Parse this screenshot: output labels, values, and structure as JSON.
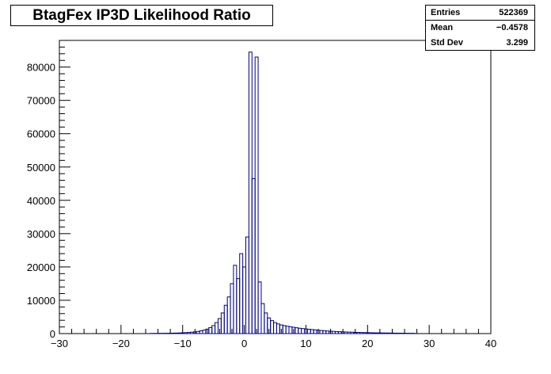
{
  "title": "BtagFex IP3D Likelihood Ratio",
  "stats": [
    {
      "label": "Entries",
      "value": "522369"
    },
    {
      "label": "Mean",
      "value": "−0.4578"
    },
    {
      "label": "Std Dev",
      "value": "3.299"
    }
  ],
  "colors": {
    "line": "#000080",
    "axis": "#000000",
    "background": "#ffffff"
  },
  "chart_data": {
    "type": "bar",
    "title": "BtagFex IP3D Likelihood Ratio",
    "xlabel": "",
    "ylabel": "",
    "xlim": [
      -30,
      40
    ],
    "ylim": [
      0,
      88000
    ],
    "bin_width": 0.5,
    "grid": false,
    "x_ticks": [
      -30,
      -20,
      -10,
      0,
      10,
      20,
      30,
      40
    ],
    "x_tick_labels": [
      "−30",
      "−20",
      "−10",
      "0",
      "10",
      "20",
      "30",
      "40"
    ],
    "y_ticks": [
      0,
      10000,
      20000,
      30000,
      40000,
      50000,
      60000,
      70000,
      80000
    ],
    "y_tick_labels": [
      "0",
      "10000",
      "20000",
      "30000",
      "40000",
      "50000",
      "60000",
      "70000",
      "80000"
    ],
    "bins": [
      {
        "x": -15.0,
        "y": 50
      },
      {
        "x": -14.5,
        "y": 60
      },
      {
        "x": -14.0,
        "y": 70
      },
      {
        "x": -13.5,
        "y": 80
      },
      {
        "x": -13.0,
        "y": 90
      },
      {
        "x": -12.5,
        "y": 100
      },
      {
        "x": -12.0,
        "y": 120
      },
      {
        "x": -11.5,
        "y": 140
      },
      {
        "x": -11.0,
        "y": 160
      },
      {
        "x": -10.5,
        "y": 190
      },
      {
        "x": -10.0,
        "y": 230
      },
      {
        "x": -9.5,
        "y": 280
      },
      {
        "x": -9.0,
        "y": 340
      },
      {
        "x": -8.5,
        "y": 420
      },
      {
        "x": -8.0,
        "y": 520
      },
      {
        "x": -7.5,
        "y": 650
      },
      {
        "x": -7.0,
        "y": 820
      },
      {
        "x": -6.5,
        "y": 1050
      },
      {
        "x": -6.0,
        "y": 1350
      },
      {
        "x": -5.5,
        "y": 1800
      },
      {
        "x": -5.0,
        "y": 2400
      },
      {
        "x": -4.5,
        "y": 3300
      },
      {
        "x": -4.0,
        "y": 4500
      },
      {
        "x": -3.5,
        "y": 6200
      },
      {
        "x": -3.0,
        "y": 8500
      },
      {
        "x": -2.5,
        "y": 11000
      },
      {
        "x": -2.0,
        "y": 15000
      },
      {
        "x": -1.5,
        "y": 20500
      },
      {
        "x": -1.0,
        "y": 16500
      },
      {
        "x": -0.5,
        "y": 24000
      },
      {
        "x": 0.0,
        "y": 20000
      },
      {
        "x": 0.5,
        "y": 29000
      },
      {
        "x": 1.0,
        "y": 84500
      },
      {
        "x": 1.5,
        "y": 46500
      },
      {
        "x": 2.0,
        "y": 83000
      },
      {
        "x": 2.5,
        "y": 15500
      },
      {
        "x": 3.0,
        "y": 9000
      },
      {
        "x": 3.5,
        "y": 6200
      },
      {
        "x": 4.0,
        "y": 4700
      },
      {
        "x": 4.5,
        "y": 3900
      },
      {
        "x": 5.0,
        "y": 3300
      },
      {
        "x": 5.5,
        "y": 2900
      },
      {
        "x": 6.0,
        "y": 2600
      },
      {
        "x": 6.5,
        "y": 2400
      },
      {
        "x": 7.0,
        "y": 2200
      },
      {
        "x": 7.5,
        "y": 2050
      },
      {
        "x": 8.0,
        "y": 1900
      },
      {
        "x": 8.5,
        "y": 1750
      },
      {
        "x": 9.0,
        "y": 1600
      },
      {
        "x": 9.5,
        "y": 1500
      },
      {
        "x": 10.0,
        "y": 1400
      },
      {
        "x": 10.5,
        "y": 1300
      },
      {
        "x": 11.0,
        "y": 1200
      },
      {
        "x": 11.5,
        "y": 1100
      },
      {
        "x": 12.0,
        "y": 1000
      },
      {
        "x": 12.5,
        "y": 920
      },
      {
        "x": 13.0,
        "y": 850
      },
      {
        "x": 13.5,
        "y": 780
      },
      {
        "x": 14.0,
        "y": 720
      },
      {
        "x": 14.5,
        "y": 660
      },
      {
        "x": 15.0,
        "y": 610
      },
      {
        "x": 15.5,
        "y": 560
      },
      {
        "x": 16.0,
        "y": 520
      },
      {
        "x": 16.5,
        "y": 480
      },
      {
        "x": 17.0,
        "y": 440
      },
      {
        "x": 17.5,
        "y": 410
      },
      {
        "x": 18.0,
        "y": 380
      },
      {
        "x": 18.5,
        "y": 350
      },
      {
        "x": 19.0,
        "y": 320
      },
      {
        "x": 19.5,
        "y": 300
      },
      {
        "x": 20.0,
        "y": 280
      },
      {
        "x": 20.5,
        "y": 260
      },
      {
        "x": 21.0,
        "y": 240
      },
      {
        "x": 21.5,
        "y": 220
      },
      {
        "x": 22.0,
        "y": 200
      },
      {
        "x": 22.5,
        "y": 190
      },
      {
        "x": 23.0,
        "y": 180
      },
      {
        "x": 23.5,
        "y": 165
      },
      {
        "x": 24.0,
        "y": 150
      },
      {
        "x": 24.5,
        "y": 140
      },
      {
        "x": 25.0,
        "y": 130
      },
      {
        "x": 25.5,
        "y": 120
      },
      {
        "x": 26.0,
        "y": 110
      },
      {
        "x": 26.5,
        "y": 100
      },
      {
        "x": 27.0,
        "y": 90
      },
      {
        "x": 27.5,
        "y": 80
      }
    ]
  }
}
